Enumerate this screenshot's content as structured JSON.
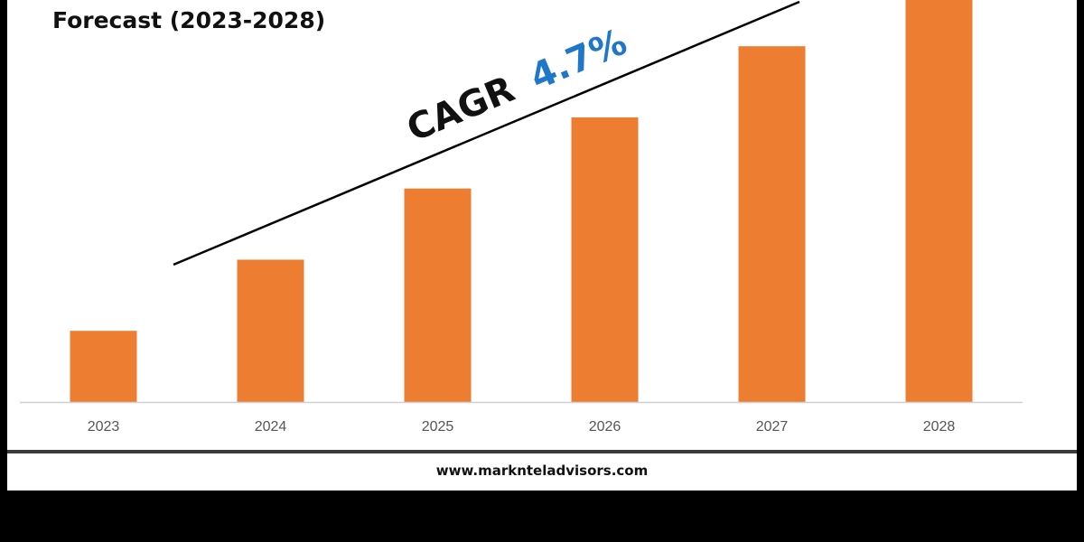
{
  "header": {
    "title": "Forecast (2023-2028)"
  },
  "annotation": {
    "cagr_label": "CAGR",
    "cagr_value": "4.7%",
    "cagr_value_color": "#1f77c9"
  },
  "footer": {
    "website": "www.marknteladvisors.com"
  },
  "colors": {
    "bar": "#ed7d31",
    "axis": "#d0d0d0",
    "trend_line": "#000000"
  },
  "chart_data": {
    "type": "bar",
    "title": "Forecast (2023-2028)",
    "categories": [
      "2023",
      "2024",
      "2025",
      "2026",
      "2027",
      "2028"
    ],
    "values": [
      1.0,
      2.0,
      3.0,
      4.0,
      5.0,
      5.65
    ],
    "ylim": [
      0,
      5.65
    ],
    "xlabel": "",
    "ylabel": "",
    "grid": false,
    "legend": "none",
    "data_labels": false
  }
}
